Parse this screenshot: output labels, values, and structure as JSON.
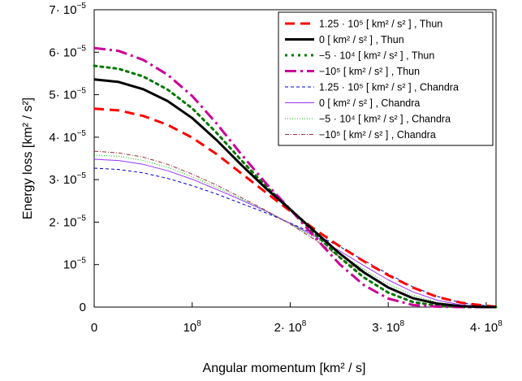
{
  "chart_data": {
    "type": "line",
    "xlabel": "Angular momentum [km² / s]",
    "ylabel": "Energy loss [km² / s²]",
    "xlim": [
      0,
      410000000
    ],
    "ylim": [
      0,
      7e-05
    ],
    "x_ticks": [
      {
        "value": 0,
        "label": "0",
        "exp": ""
      },
      {
        "value": 100000000,
        "label": "10",
        "exp": "8"
      },
      {
        "value": 200000000,
        "label": "2· 10",
        "exp": "8"
      },
      {
        "value": 300000000,
        "label": "3· 10",
        "exp": "8"
      },
      {
        "value": 400000000,
        "label": "4· 10",
        "exp": "8"
      }
    ],
    "y_ticks": [
      {
        "value": 0,
        "label": "0",
        "exp": ""
      },
      {
        "value": 1e-05,
        "label": "10",
        "exp": "−5"
      },
      {
        "value": 2e-05,
        "label": "2· 10",
        "exp": "−5"
      },
      {
        "value": 3e-05,
        "label": "3· 10",
        "exp": "−5"
      },
      {
        "value": 4e-05,
        "label": "4· 10",
        "exp": "−5"
      },
      {
        "value": 5e-05,
        "label": "5· 10",
        "exp": "−5"
      },
      {
        "value": 6e-05,
        "label": "6· 10",
        "exp": "−5"
      },
      {
        "value": 7e-05,
        "label": "7· 10",
        "exp": "−5"
      }
    ],
    "grid": false,
    "legend_position": "top-right",
    "x": [
      0,
      25000000,
      50000000,
      75000000,
      100000000,
      125000000,
      150000000,
      175000000,
      200000000,
      225000000,
      250000000,
      275000000,
      300000000,
      325000000,
      350000000,
      375000000,
      400000000,
      410000000
    ],
    "series": [
      {
        "name": "1.25 · 10⁵ [ km² / s² ] , Thun",
        "color": "#ff0000",
        "style": "dashed",
        "width": 3,
        "values": [
          4.67e-05,
          4.63e-05,
          4.5e-05,
          4.29e-05,
          3.99e-05,
          3.6e-05,
          3.15e-05,
          2.7e-05,
          2.26e-05,
          1.83e-05,
          1.44e-05,
          1.08e-05,
          7.5e-06,
          4.6e-06,
          2.4e-06,
          1e-06,
          3e-07,
          1e-07
        ]
      },
      {
        "name": "0 [ km² / s² ] , Thun",
        "color": "#000000",
        "style": "solid",
        "width": 3,
        "values": [
          5.36e-05,
          5.3e-05,
          5.13e-05,
          4.85e-05,
          4.45e-05,
          3.93e-05,
          3.35e-05,
          2.8e-05,
          2.3e-05,
          1.78e-05,
          1.27e-05,
          8.2e-06,
          4.6e-06,
          2.1e-06,
          8e-07,
          2e-07,
          0,
          0
        ]
      },
      {
        "name": "−5 · 10⁴ [ km² / s² ] , Thun",
        "color": "#007700",
        "style": "dotted",
        "width": 3,
        "values": [
          5.68e-05,
          5.61e-05,
          5.43e-05,
          5.12e-05,
          4.68e-05,
          4.1e-05,
          3.46e-05,
          2.85e-05,
          2.3e-05,
          1.73e-05,
          1.18e-05,
          7e-06,
          3.4e-06,
          1.2e-06,
          3e-07,
          0,
          0,
          0
        ]
      },
      {
        "name": "−10⁵ [ km² / s² ] , Thun",
        "color": "#cc0099",
        "style": "dashdot",
        "width": 3,
        "values": [
          6.1e-05,
          6.03e-05,
          5.82e-05,
          5.47e-05,
          4.97e-05,
          4.32e-05,
          3.6e-05,
          2.92e-05,
          2.3e-05,
          1.65e-05,
          1.02e-05,
          5.2e-06,
          2e-06,
          5e-07,
          1e-07,
          0,
          0,
          0
        ]
      },
      {
        "name": "1.25 · 10⁵ [ km² / s² ] , Chandra",
        "color": "#0000cc",
        "style": "thin-dashed",
        "width": 1,
        "values": [
          3.27e-05,
          3.24e-05,
          3.16e-05,
          3.03e-05,
          2.86e-05,
          2.66e-05,
          2.44e-05,
          2.22e-05,
          1.98e-05,
          1.72e-05,
          1.43e-05,
          1.1e-05,
          7.8e-06,
          4.8e-06,
          2.5e-06,
          1e-06,
          3e-07,
          1e-07
        ]
      },
      {
        "name": "0 [ km² / s² ] , Chandra",
        "color": "#9933ff",
        "style": "thin-solid",
        "width": 1,
        "values": [
          3.48e-05,
          3.45e-05,
          3.36e-05,
          3.21e-05,
          3.01e-05,
          2.77e-05,
          2.52e-05,
          2.26e-05,
          1.97e-05,
          1.67e-05,
          1.33e-05,
          9.8e-06,
          6.4e-06,
          3.6e-06,
          1.6e-06,
          5e-07,
          1e-07,
          0
        ]
      },
      {
        "name": "−5 · 10⁴ [ km² / s² ] , Chandra",
        "color": "#00bb00",
        "style": "thin-dotted",
        "width": 1,
        "values": [
          3.58e-05,
          3.55e-05,
          3.45e-05,
          3.29e-05,
          3.07e-05,
          2.82e-05,
          2.55e-05,
          2.27e-05,
          1.96e-05,
          1.63e-05,
          1.26e-05,
          8.9e-06,
          5.4e-06,
          2.8e-06,
          1.1e-06,
          3e-07,
          0,
          0
        ]
      },
      {
        "name": "−10⁵ [ km² / s² ] , Chandra",
        "color": "#993333",
        "style": "thin-dashdot",
        "width": 1,
        "values": [
          3.67e-05,
          3.63e-05,
          3.53e-05,
          3.36e-05,
          3.13e-05,
          2.87e-05,
          2.58e-05,
          2.28e-05,
          1.95e-05,
          1.59e-05,
          1.19e-05,
          7.9e-06,
          4.5e-06,
          2.1e-06,
          7e-07,
          1e-07,
          0,
          0
        ]
      }
    ]
  }
}
